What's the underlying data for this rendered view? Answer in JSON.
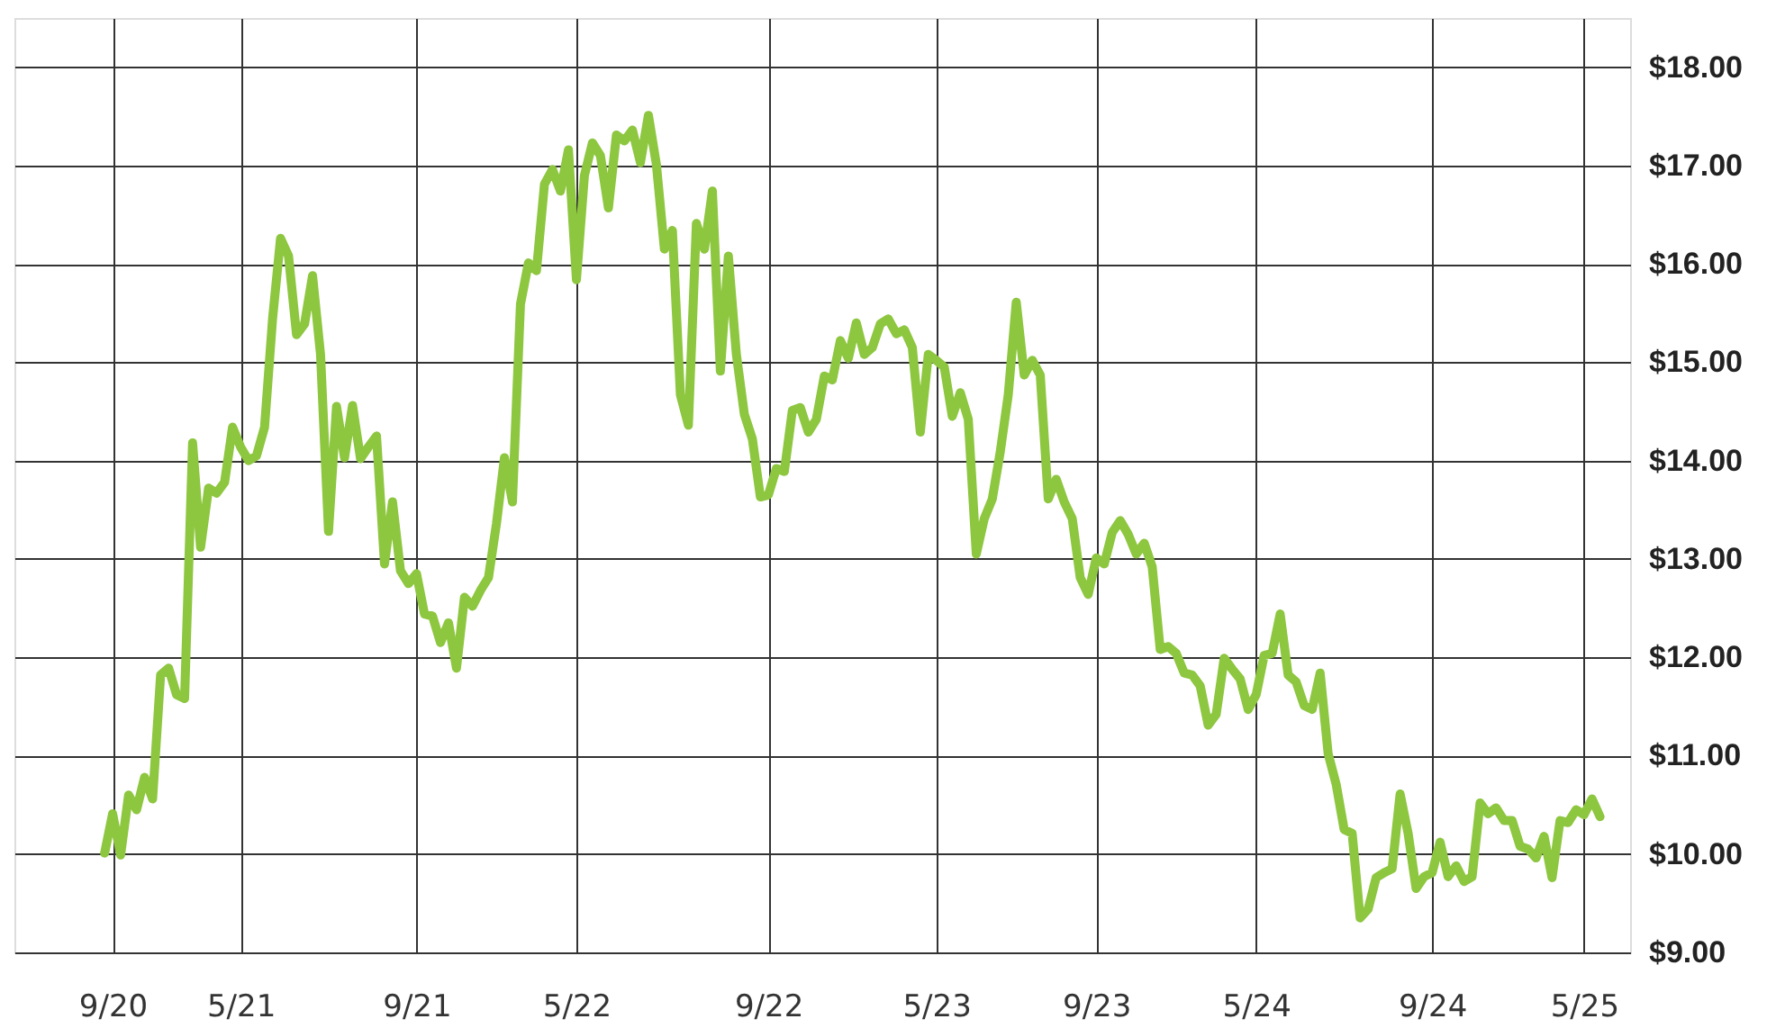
{
  "chart_data": {
    "type": "line",
    "categories": [
      null,
      "9/20",
      null,
      null,
      null,
      null,
      null,
      null,
      null,
      null,
      null,
      null,
      null,
      null,
      null,
      null,
      null,
      "5/21",
      null,
      null,
      null,
      null,
      null,
      null,
      null,
      null,
      null,
      null,
      null,
      null,
      null,
      null,
      null,
      null,
      null,
      null,
      null,
      null,
      null,
      "9/21",
      null,
      null,
      null,
      null,
      null,
      null,
      null,
      null,
      null,
      null,
      null,
      null,
      null,
      null,
      null,
      null,
      null,
      null,
      null,
      "5/22",
      null,
      null,
      null,
      null,
      null,
      null,
      null,
      null,
      null,
      null,
      null,
      null,
      null,
      null,
      null,
      null,
      null,
      null,
      null,
      null,
      null,
      null,
      null,
      "9/22",
      null,
      null,
      null,
      null,
      null,
      null,
      null,
      null,
      null,
      null,
      null,
      null,
      null,
      null,
      null,
      null,
      null,
      null,
      null,
      null,
      "5/23",
      null,
      null,
      null,
      null,
      null,
      null,
      null,
      null,
      null,
      null,
      null,
      null,
      null,
      null,
      null,
      null,
      null,
      null,
      null,
      "9/23",
      null,
      null,
      null,
      null,
      null,
      null,
      null,
      null,
      null,
      null,
      null,
      null,
      null,
      null,
      null,
      null,
      null,
      null,
      null,
      "5/24",
      null,
      null,
      null,
      null,
      null,
      null,
      null,
      null,
      null,
      null,
      null,
      null,
      null,
      null,
      null,
      null,
      null,
      null,
      null,
      null,
      null,
      "9/24",
      null,
      null,
      null,
      null,
      null,
      null,
      null,
      null,
      null,
      null,
      null,
      null,
      null,
      null,
      null,
      null,
      null,
      null,
      "5/25",
      null,
      null
    ],
    "series": [
      {
        "color": "#8dc63f",
        "values": [
          10.01,
          10.41,
          9.99,
          10.6,
          10.45,
          10.78,
          10.56,
          11.82,
          11.89,
          11.62,
          11.58,
          14.18,
          13.12,
          13.72,
          13.67,
          13.78,
          14.34,
          14.14,
          14.0,
          14.05,
          14.34,
          15.44,
          16.26,
          16.08,
          15.28,
          15.39,
          15.88,
          15.08,
          13.28,
          14.55,
          14.03,
          14.56,
          14.02,
          14.14,
          14.25,
          12.95,
          13.58,
          12.88,
          12.75,
          12.85,
          12.44,
          12.42,
          12.15,
          12.35,
          11.89,
          12.61,
          12.52,
          12.68,
          12.81,
          13.36,
          14.03,
          13.58,
          15.59,
          16.01,
          15.93,
          16.81,
          16.96,
          16.74,
          17.16,
          15.84,
          16.9,
          17.23,
          17.1,
          16.57,
          17.31,
          17.25,
          17.36,
          17.03,
          17.51,
          17.01,
          16.15,
          16.34,
          14.67,
          14.36,
          16.41,
          16.15,
          16.74,
          14.91,
          16.08,
          15.08,
          14.47,
          14.22,
          13.63,
          13.65,
          13.92,
          13.89,
          14.51,
          14.54,
          14.29,
          14.42,
          14.86,
          14.82,
          15.22,
          15.04,
          15.4,
          15.08,
          15.15,
          15.39,
          15.44,
          15.29,
          15.33,
          15.15,
          14.29,
          15.08,
          15.02,
          14.95,
          14.45,
          14.69,
          14.42,
          13.05,
          13.41,
          13.61,
          14.09,
          14.67,
          15.61,
          14.87,
          15.02,
          14.87,
          13.61,
          13.81,
          13.58,
          13.41,
          12.81,
          12.64,
          13.01,
          12.95,
          13.27,
          13.39,
          13.25,
          13.05,
          13.16,
          12.92,
          12.08,
          12.11,
          12.04,
          11.84,
          11.82,
          11.71,
          11.31,
          11.42,
          11.99,
          11.88,
          11.78,
          11.47,
          11.62,
          12.02,
          12.04,
          12.44,
          11.82,
          11.75,
          11.51,
          11.47,
          11.84,
          11.02,
          10.71,
          10.25,
          10.21,
          9.35,
          9.44,
          9.76,
          9.81,
          9.85,
          10.61,
          10.21,
          9.65,
          9.77,
          9.81,
          10.12,
          9.77,
          9.88,
          9.72,
          9.77,
          10.52,
          10.41,
          10.47,
          10.34,
          10.34,
          10.08,
          10.05,
          9.96,
          10.18,
          9.76,
          10.34,
          10.32,
          10.45,
          10.4,
          10.56,
          10.38
        ]
      }
    ],
    "ylim": [
      9,
      18.5
    ],
    "yticks": [
      {
        "value": 9,
        "label": "$9.00"
      },
      {
        "value": 10,
        "label": "$10.00"
      },
      {
        "value": 11,
        "label": "$11.00"
      },
      {
        "value": 12,
        "label": "$12.00"
      },
      {
        "value": 13,
        "label": "$13.00"
      },
      {
        "value": 14,
        "label": "$14.00"
      },
      {
        "value": 15,
        "label": "$15.00"
      },
      {
        "value": 16,
        "label": "$16.00"
      },
      {
        "value": 17,
        "label": "$17.00"
      },
      {
        "value": 18,
        "label": "$18.00"
      }
    ],
    "grid": true,
    "marker": "none",
    "line_style": "solid"
  }
}
